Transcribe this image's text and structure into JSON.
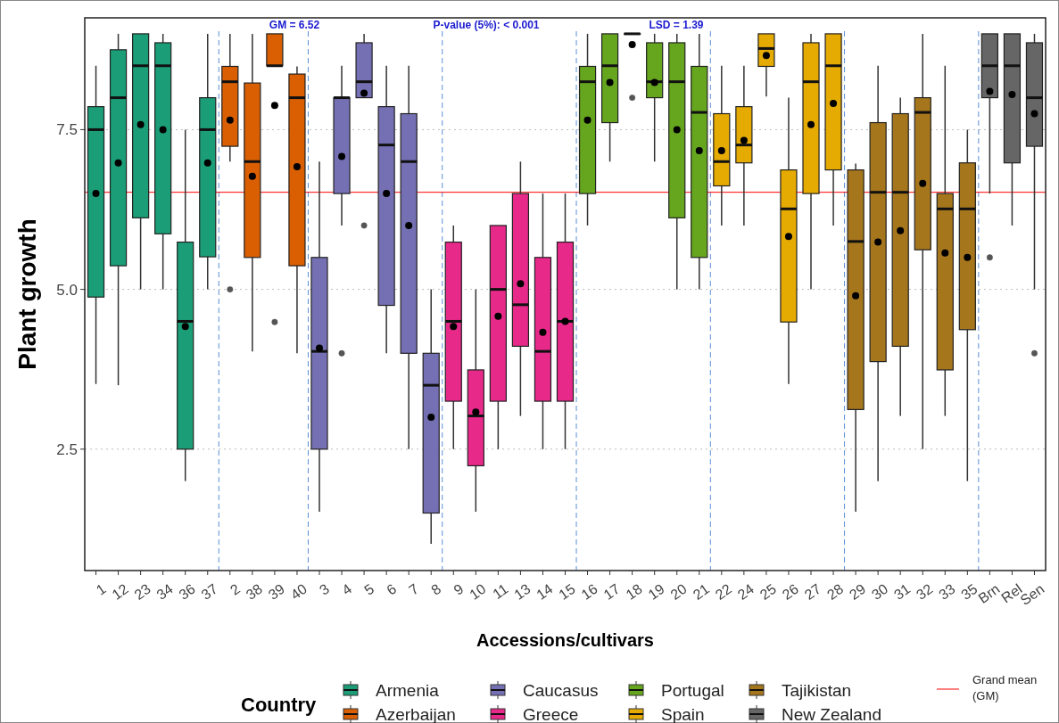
{
  "chart_data": {
    "type": "box",
    "xlabel": "Accessions/cultivars",
    "ylabel": "Plant growth",
    "legend_title": "Country",
    "legend": "bottom",
    "grid": "y",
    "annotations": [
      "GM = 6.52",
      "P-value (5%): < 0.001",
      "LSD = 1.39"
    ],
    "categories": [
      "1",
      "12",
      "23",
      "34",
      "36",
      "37",
      "2",
      "38",
      "39",
      "40",
      "3",
      "4",
      "5",
      "6",
      "7",
      "8",
      "9",
      "10",
      "11",
      "13",
      "14",
      "15",
      "16",
      "17",
      "18",
      "19",
      "20",
      "21",
      "22",
      "24",
      "25",
      "26",
      "27",
      "28",
      "29",
      "30",
      "31",
      "32",
      "33",
      "35",
      "Brn",
      "Rel",
      "Sen"
    ],
    "ylim": [
      0.6,
      9.25
    ],
    "yticks": [
      2.5,
      {
        "value": 5,
        "label": "5.0"
      },
      7.5
    ],
    "ref_lines": [
      {
        "axis": "y",
        "value": 6.52,
        "label": "Grand mean (GM)",
        "color": "#ff0000"
      }
    ],
    "series": [
      {
        "name": "Armenia",
        "color": "#1b9e77",
        "x": [
          "1",
          "12",
          "23",
          "34",
          "36",
          "37"
        ],
        "boxes": [
          {
            "low": 3.52,
            "q1": 4.88,
            "median": 7.5,
            "q3": 7.86,
            "high": 8.5,
            "mean": 6.5
          },
          {
            "low": 3.5,
            "q1": 5.37,
            "median": 8.0,
            "q3": 8.75,
            "high": 9.0,
            "mean": 6.98
          },
          {
            "low": 5.0,
            "q1": 6.12,
            "median": 8.5,
            "q3": 9.0,
            "high": 9.0,
            "mean": 7.58
          },
          {
            "low": 5.0,
            "q1": 5.87,
            "median": 8.5,
            "q3": 8.86,
            "high": 9.0,
            "mean": 7.5
          },
          {
            "low": 2.0,
            "q1": 2.5,
            "median": 4.5,
            "q3": 5.74,
            "high": 7.5,
            "mean": 4.42
          },
          {
            "low": 5.0,
            "q1": 5.51,
            "median": 7.5,
            "q3": 8.0,
            "high": 9.0,
            "mean": 6.98
          }
        ]
      },
      {
        "name": "Azerbaijan",
        "color": "#d95f02",
        "x": [
          "2",
          "38",
          "39",
          "40"
        ],
        "boxes": [
          {
            "low": 7.0,
            "q1": 7.24,
            "median": 8.25,
            "q3": 8.49,
            "high": 9.0,
            "mean": 7.65,
            "outliers": [
              5.0
            ]
          },
          {
            "low": 4.03,
            "q1": 5.5,
            "median": 7.0,
            "q3": 8.23,
            "high": 9.0,
            "mean": 6.77
          },
          {
            "low": 8.5,
            "q1": 8.5,
            "median": 8.5,
            "q3": 9.0,
            "high": 9.0,
            "mean": 7.88,
            "outliers": [
              4.49
            ]
          },
          {
            "low": 4.0,
            "q1": 5.37,
            "median": 8.0,
            "q3": 8.37,
            "high": 8.49,
            "mean": 6.92
          }
        ]
      },
      {
        "name": "Caucasus",
        "color": "#7570b3",
        "x": [
          "3",
          "4",
          "5",
          "6",
          "7",
          "8"
        ],
        "boxes": [
          {
            "low": 1.52,
            "q1": 2.5,
            "median": 4.03,
            "q3": 5.5,
            "high": 7.0,
            "mean": 4.08
          },
          {
            "low": 6.0,
            "q1": 6.5,
            "median": 8.0,
            "q3": 8.0,
            "high": 8.5,
            "mean": 7.08,
            "outliers": [
              4.0
            ]
          },
          {
            "low": 8.0,
            "q1": 8.0,
            "median": 8.25,
            "q3": 8.86,
            "high": 9.0,
            "mean": 8.07,
            "outliers": [
              6.0
            ]
          },
          {
            "low": 4.0,
            "q1": 4.75,
            "median": 7.26,
            "q3": 7.86,
            "high": 8.5,
            "mean": 6.5
          },
          {
            "low": 2.5,
            "q1": 4.0,
            "median": 7.0,
            "q3": 7.75,
            "high": 8.5,
            "mean": 6.0
          },
          {
            "low": 1.02,
            "q1": 1.5,
            "median": 3.5,
            "q3": 4.0,
            "high": 5.0,
            "mean": 3.0
          }
        ]
      },
      {
        "name": "Greece",
        "color": "#e7298a",
        "x": [
          "9",
          "10",
          "11",
          "13",
          "14",
          "15"
        ],
        "boxes": [
          {
            "low": 2.5,
            "q1": 3.25,
            "median": 4.5,
            "q3": 5.74,
            "high": 6.0,
            "mean": 4.42
          },
          {
            "low": 1.52,
            "q1": 2.24,
            "median": 3.02,
            "q3": 3.74,
            "high": 5.0,
            "mean": 3.08
          },
          {
            "low": 2.5,
            "q1": 3.25,
            "median": 5.0,
            "q3": 6.0,
            "high": 6.0,
            "mean": 4.58
          },
          {
            "low": 3.02,
            "q1": 4.11,
            "median": 4.76,
            "q3": 6.5,
            "high": 7.0,
            "mean": 5.09
          },
          {
            "low": 2.5,
            "q1": 3.25,
            "median": 4.03,
            "q3": 5.5,
            "high": 6.5,
            "mean": 4.33
          },
          {
            "low": 2.5,
            "q1": 3.25,
            "median": 4.5,
            "q3": 5.74,
            "high": 6.5,
            "mean": 4.5
          }
        ]
      },
      {
        "name": "Portugal",
        "color": "#66a61e",
        "x": [
          "16",
          "17",
          "18",
          "19",
          "20",
          "21"
        ],
        "boxes": [
          {
            "low": 6.0,
            "q1": 6.5,
            "median": 8.25,
            "q3": 8.49,
            "high": 9.0,
            "mean": 7.65
          },
          {
            "low": 7.0,
            "q1": 7.61,
            "median": 8.5,
            "q3": 9.0,
            "high": 9.0,
            "mean": 8.24
          },
          {
            "low": 9.0,
            "q1": 9.0,
            "median": 9.0,
            "q3": 9.0,
            "high": 9.0,
            "mean": 8.83,
            "outliers": [
              8.0
            ]
          },
          {
            "low": 7.0,
            "q1": 8.0,
            "median": 8.25,
            "q3": 8.86,
            "high": 9.0,
            "mean": 8.24
          },
          {
            "low": 5.0,
            "q1": 6.12,
            "median": 8.25,
            "q3": 8.86,
            "high": 9.0,
            "mean": 7.5
          },
          {
            "low": 5.0,
            "q1": 5.5,
            "median": 7.77,
            "q3": 8.49,
            "high": 9.0,
            "mean": 7.17
          }
        ]
      },
      {
        "name": "Spain",
        "color": "#e6ab02",
        "x": [
          "22",
          "24",
          "25",
          "26",
          "27",
          "28"
        ],
        "boxes": [
          {
            "low": 6.0,
            "q1": 6.62,
            "median": 7.0,
            "q3": 7.75,
            "high": 8.5,
            "mean": 7.17
          },
          {
            "low": 6.0,
            "q1": 6.98,
            "median": 7.26,
            "q3": 7.86,
            "high": 8.5,
            "mean": 7.33
          },
          {
            "low": 8.02,
            "q1": 8.49,
            "median": 8.77,
            "q3": 9.0,
            "high": 9.0,
            "mean": 8.66
          },
          {
            "low": 3.52,
            "q1": 4.49,
            "median": 6.26,
            "q3": 6.87,
            "high": 8.0,
            "mean": 5.83
          },
          {
            "low": 5.0,
            "q1": 6.5,
            "median": 8.25,
            "q3": 8.86,
            "high": 9.0,
            "mean": 7.58
          },
          {
            "low": 6.0,
            "q1": 6.87,
            "median": 8.5,
            "q3": 9.0,
            "high": 9.0,
            "mean": 7.91
          }
        ]
      },
      {
        "name": "Tajikistan",
        "color": "#a6761d",
        "x": [
          "29",
          "30",
          "31",
          "32",
          "33",
          "35"
        ],
        "boxes": [
          {
            "low": 1.52,
            "q1": 3.12,
            "median": 5.75,
            "q3": 6.87,
            "high": 6.97,
            "mean": 4.9
          },
          {
            "low": 2.0,
            "q1": 3.87,
            "median": 6.52,
            "q3": 7.61,
            "high": 8.5,
            "mean": 5.74
          },
          {
            "low": 3.02,
            "q1": 4.11,
            "median": 6.52,
            "q3": 7.75,
            "high": 8.0,
            "mean": 5.92
          },
          {
            "low": 2.5,
            "q1": 5.62,
            "median": 7.77,
            "q3": 8.0,
            "high": 9.0,
            "mean": 6.66
          },
          {
            "low": 3.02,
            "q1": 3.74,
            "median": 6.26,
            "q3": 6.5,
            "high": 8.5,
            "mean": 5.57
          },
          {
            "low": 2.0,
            "q1": 4.37,
            "median": 6.26,
            "q3": 6.98,
            "high": 7.5,
            "mean": 5.5
          }
        ]
      },
      {
        "name": "New Zealand",
        "color": "#666666",
        "x": [
          "Brn",
          "Rel",
          "Sen"
        ],
        "boxes": [
          {
            "low": 6.5,
            "q1": 8.0,
            "median": 8.5,
            "q3": 9.0,
            "high": 9.0,
            "mean": 8.1,
            "outliers": [
              5.5
            ]
          },
          {
            "low": 6.0,
            "q1": 6.98,
            "median": 8.5,
            "q3": 9.0,
            "high": 9.0,
            "mean": 8.05
          },
          {
            "low": 5.0,
            "q1": 7.24,
            "median": 8.0,
            "q3": 8.86,
            "high": 9.0,
            "mean": 7.75,
            "outliers": [
              4.0
            ]
          }
        ]
      }
    ]
  }
}
